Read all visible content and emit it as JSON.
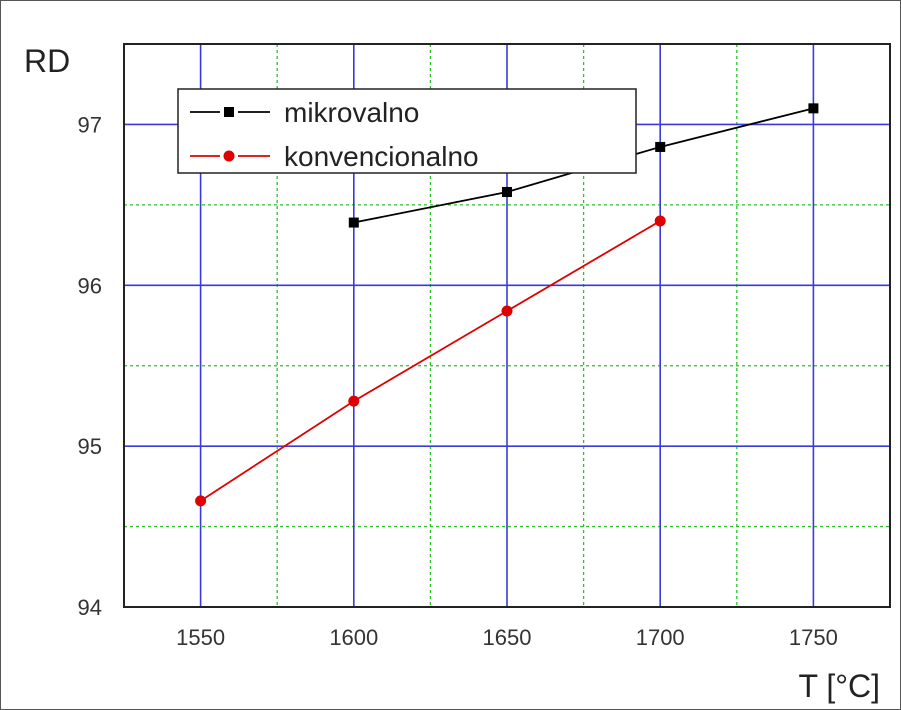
{
  "chart_data": {
    "type": "line",
    "xlabel": "T [°C]",
    "ylabel": "RD",
    "xlim": [
      1525,
      1775
    ],
    "ylim": [
      94,
      97.5
    ],
    "x_ticks": [
      1550,
      1600,
      1650,
      1700,
      1750
    ],
    "y_ticks": [
      94,
      95,
      96,
      97
    ],
    "grid": true,
    "legend": "top-left",
    "series": [
      {
        "name": "mikrovalno",
        "color": "#000000",
        "marker": "square",
        "x": [
          1600,
          1650,
          1700,
          1750
        ],
        "y": [
          96.39,
          96.58,
          96.86,
          97.1
        ]
      },
      {
        "name": "konvencionalno",
        "color": "#e00000",
        "marker": "circle",
        "x": [
          1550,
          1600,
          1650,
          1700
        ],
        "y": [
          94.66,
          95.28,
          95.84,
          96.4
        ]
      }
    ]
  }
}
